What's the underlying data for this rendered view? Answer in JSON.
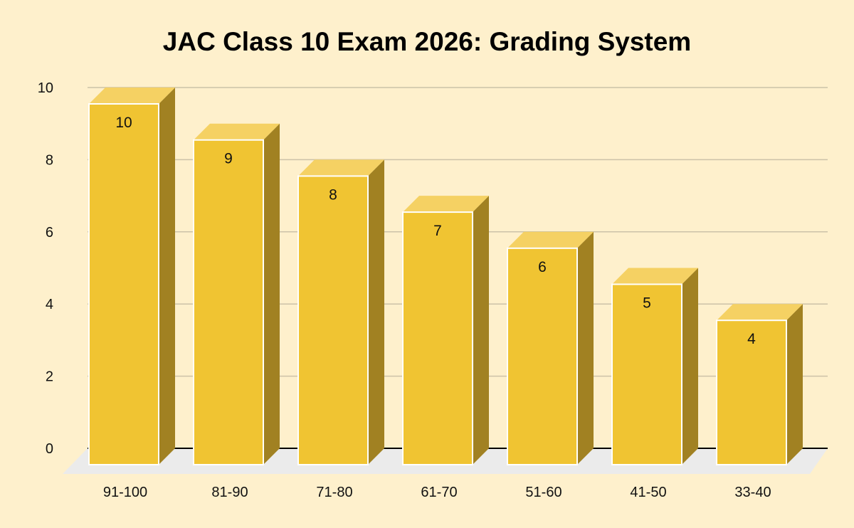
{
  "chart_data": {
    "type": "bar",
    "title": "JAC Class 10 Exam 2026: Grading System",
    "xlabel": "",
    "ylabel": "",
    "categories": [
      "91-100",
      "81-90",
      "71-80",
      "61-70",
      "51-60",
      "41-50",
      "33-40"
    ],
    "values": [
      10,
      9,
      8,
      7,
      6,
      5,
      4
    ],
    "data_labels": [
      "10",
      "9",
      "8",
      "7",
      "6",
      "5",
      "4"
    ],
    "ylim": [
      0,
      10
    ],
    "yticks": [
      "0",
      "2",
      "4",
      "6",
      "8",
      "10"
    ],
    "grid": true,
    "style": "3d-column",
    "colors": {
      "background": "#fef0cc",
      "bar_front": "#f0c432",
      "bar_top": "#f5d163",
      "bar_side": "#a18122",
      "bar_edge": "#ffffff",
      "gridline": "#ccc2a8",
      "floor": "#ebebeb",
      "baseline": "#000000"
    }
  }
}
